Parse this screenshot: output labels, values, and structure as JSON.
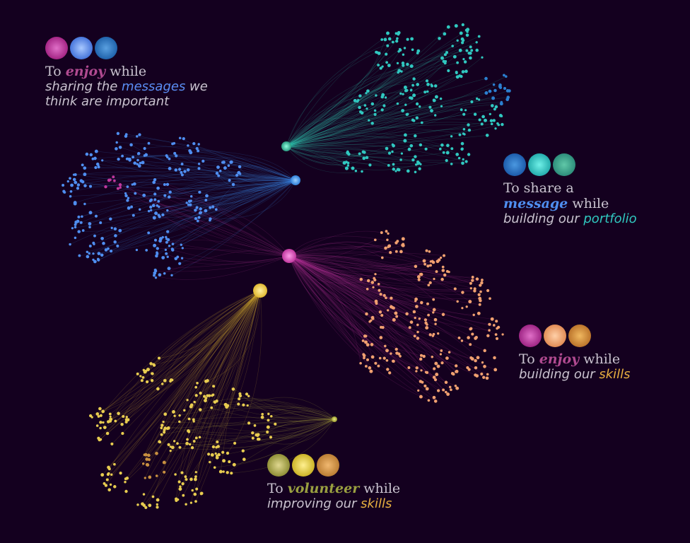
{
  "colors": {
    "background": "#14001f",
    "pink": "#c0389e",
    "blue": "#4f8ef0",
    "teal": "#30c8c0",
    "orange": "#f0a070",
    "yellow": "#e8cc50",
    "olive": "#a8a038"
  },
  "legends": [
    {
      "id": "enjoy-messages",
      "swatches": [
        "#c0389e",
        "#5b8ef5",
        "#2f7fd0"
      ],
      "prefix": "To ",
      "keyword": "enjoy",
      "keyword_color": "#b04a90",
      "suffix": " while",
      "line2_pre": "sharing the ",
      "line2_hl": "messages",
      "line2_hl_color": "#5b8ef5",
      "line2_post": " we",
      "line3": "think are important"
    },
    {
      "id": "share-message",
      "swatches": [
        "#2170c0",
        "#30c8c0",
        "#3aa590"
      ],
      "prefix": "To share a",
      "keyword": "",
      "keyword_color": "",
      "suffix": "",
      "line2_pre": "",
      "line2_kw": "message",
      "line2_kw_color": "#4f8ef0",
      "line2_post": " while",
      "line3_pre": "building our ",
      "line3_hl": "portfolio",
      "line3_hl_color": "#30c8c0"
    },
    {
      "id": "enjoy-skills",
      "swatches": [
        "#b0388e",
        "#f0a070",
        "#c8883a"
      ],
      "prefix": "To ",
      "keyword": "enjoy",
      "keyword_color": "#b04a90",
      "suffix": " while",
      "line2_pre": "building our ",
      "line2_hl": "skills",
      "line2_hl_color": "#e8b040"
    },
    {
      "id": "volunteer-skills",
      "swatches": [
        "#b8b050",
        "#e0d040",
        "#c8903a"
      ],
      "prefix": "To ",
      "keyword": "volunteer",
      "keyword_color": "#9aa040",
      "suffix": " while",
      "line2_pre": "improving our ",
      "line2_hl": "skills",
      "line2_hl_color": "#e8b040"
    }
  ]
}
